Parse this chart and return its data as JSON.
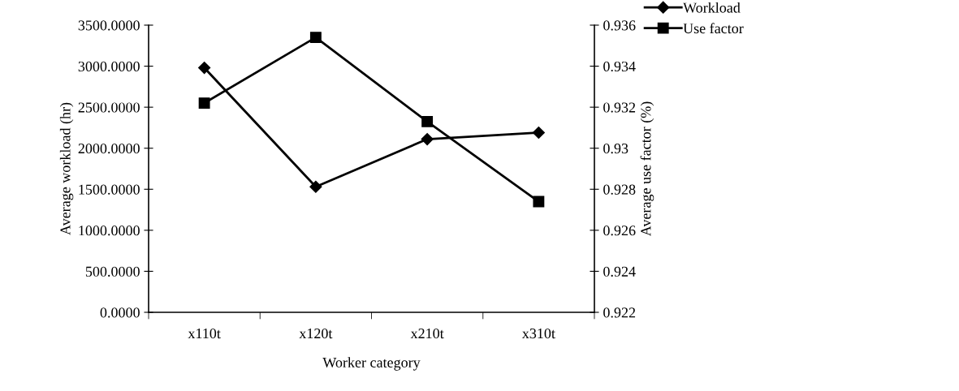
{
  "chart_data": {
    "type": "line",
    "xlabel": "Worker category",
    "ylabel": "Average workload (hr)",
    "y2label": "Average use factor (%)",
    "categories": [
      "x110t",
      "x120t",
      "x210t",
      "x310t"
    ],
    "series": [
      {
        "name": "Workload",
        "color": "#000000",
        "marker": "diamond",
        "values": [
          2980,
          1530,
          2110,
          2190
        ]
      },
      {
        "name": "Use factor",
        "color": "#000000",
        "marker": "square",
        "axis": "y2",
        "values": [
          0.9322,
          0.9354,
          0.9313,
          0.9274
        ]
      }
    ],
    "ylim": [
      0,
      3500
    ],
    "yticks": [
      {
        "value": 0,
        "label": "0.0000"
      },
      {
        "value": 500,
        "label": "500.0000"
      },
      {
        "value": 1000,
        "label": "1000.0000"
      },
      {
        "value": 1500,
        "label": "1500.0000"
      },
      {
        "value": 2000,
        "label": "2000.0000"
      },
      {
        "value": 2500,
        "label": "2500.0000"
      },
      {
        "value": 3000,
        "label": "3000.0000"
      },
      {
        "value": 3500,
        "label": "3500.0000"
      }
    ],
    "y2lim": [
      0.922,
      0.936
    ],
    "y2ticks": [
      0.922,
      0.924,
      0.926,
      0.928,
      0.93,
      0.932,
      0.934,
      0.936
    ],
    "legend": "top right",
    "grid": false
  }
}
